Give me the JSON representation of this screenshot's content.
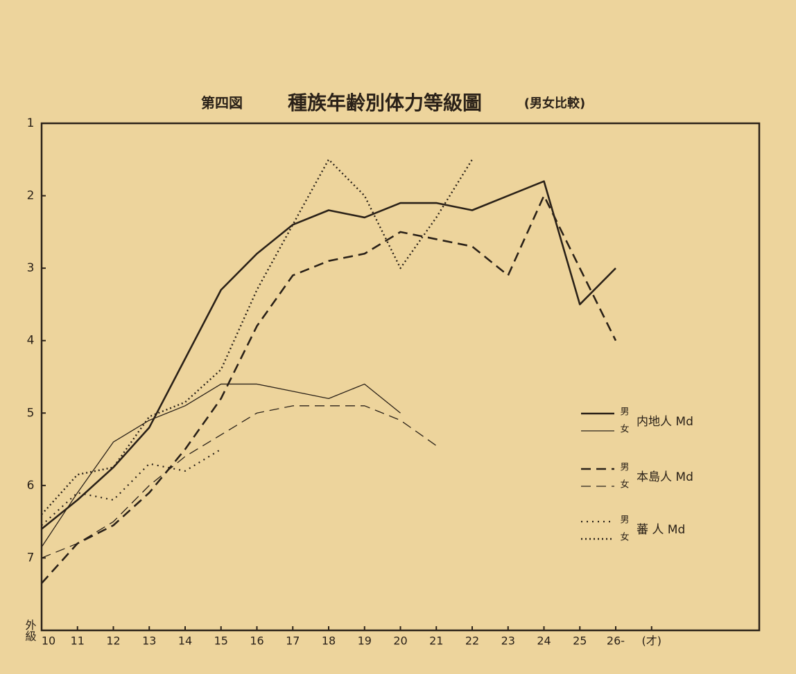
{
  "chart_data": {
    "type": "line",
    "figure_label": "第四図",
    "title": "種族年齢別体力等級圖",
    "subtitle": "(男女比較)",
    "xlim": [
      10,
      30
    ],
    "ylim": [
      8,
      1
    ],
    "xticks": [
      10,
      11,
      12,
      13,
      14,
      15,
      16,
      17,
      18,
      19,
      20,
      21,
      22,
      23,
      24,
      25,
      {
        "value": 26,
        "label": "26-"
      },
      {
        "value": 27,
        "label": "(才)"
      }
    ],
    "yticks": [
      1,
      2,
      3,
      4,
      5,
      6,
      7,
      {
        "value": 8,
        "label": "外級"
      }
    ],
    "color": "#2a2118",
    "legend_groups": [
      "内地人 Md",
      "本島人 Md",
      "蕃 人 Md"
    ],
    "series": [
      {
        "name": "男",
        "style": "solid",
        "width": 2.6,
        "x": [
          10,
          11,
          12,
          13,
          14,
          15,
          16,
          17,
          18,
          19,
          20,
          21,
          22,
          23,
          24,
          25,
          26
        ],
        "values": [
          6.6,
          6.2,
          5.75,
          5.2,
          4.25,
          3.3,
          2.8,
          2.4,
          2.2,
          2.3,
          2.1,
          2.1,
          2.2,
          2.0,
          1.8,
          3.5,
          3.0
        ]
      },
      {
        "name": "女",
        "style": "solid",
        "width": 1.3,
        "x": [
          10,
          11,
          12,
          13,
          14,
          15,
          16,
          17,
          18,
          19,
          20
        ],
        "values": [
          6.85,
          6.1,
          5.4,
          5.1,
          4.9,
          4.6,
          4.6,
          4.7,
          4.8,
          4.6,
          5.0
        ]
      },
      {
        "name": "男",
        "style": "dashed",
        "width": 2.6,
        "x": [
          10,
          11,
          12,
          13,
          14,
          15,
          16,
          17,
          18,
          19,
          20,
          21,
          22,
          23,
          24,
          25,
          26
        ],
        "values": [
          7.35,
          6.8,
          6.55,
          6.1,
          5.5,
          4.8,
          3.8,
          3.1,
          2.9,
          2.8,
          2.5,
          2.6,
          2.7,
          3.1,
          2.0,
          3.0,
          4.0
        ]
      },
      {
        "name": "女",
        "style": "dashed",
        "width": 1.3,
        "x": [
          10,
          11,
          12,
          13,
          14,
          15,
          16,
          17,
          18,
          19,
          20,
          21
        ],
        "values": [
          7.0,
          6.8,
          6.5,
          6.0,
          5.6,
          5.3,
          5.0,
          4.9,
          4.9,
          4.9,
          5.1,
          5.45
        ]
      },
      {
        "name": "男",
        "style": "dotted-sparse",
        "width": 2.2,
        "x": [
          10,
          11,
          12,
          13,
          14,
          15
        ],
        "values": [
          6.55,
          6.1,
          6.2,
          5.7,
          5.8,
          5.5
        ]
      },
      {
        "name": "女",
        "style": "dotted",
        "width": 2.4,
        "x": [
          10,
          11,
          12,
          13,
          14,
          15,
          16,
          17,
          18,
          19,
          20,
          21,
          22
        ],
        "values": [
          6.4,
          5.85,
          5.75,
          5.05,
          4.85,
          4.4,
          3.3,
          2.4,
          1.5,
          2.0,
          3.0,
          2.3,
          1.5
        ]
      }
    ]
  }
}
